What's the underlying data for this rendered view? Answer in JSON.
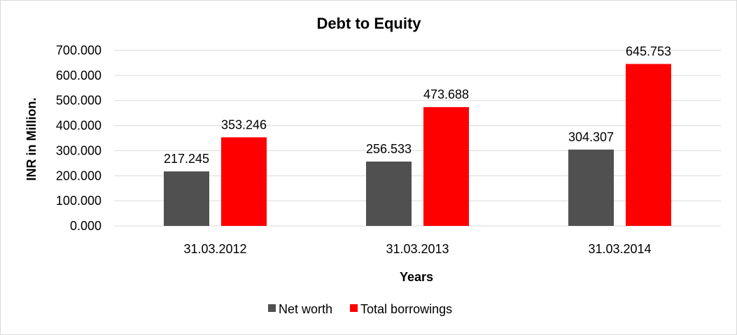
{
  "chart_data": {
    "type": "bar",
    "title": "Debt to Equity",
    "xlabel": "Years",
    "ylabel": "INR in Million.",
    "categories": [
      "31.03.2012",
      "31.03.2013",
      "31.03.2014"
    ],
    "series": [
      {
        "name": "Net worth",
        "color": "#505050",
        "values": [
          217.245,
          256.533,
          304.307
        ],
        "labels": [
          "217.245",
          "256.533",
          "304.307"
        ]
      },
      {
        "name": "Total borrowings",
        "color": "#ff0000",
        "values": [
          353.246,
          473.688,
          645.753
        ],
        "labels": [
          "353.246",
          "473.688",
          "645.753"
        ]
      }
    ],
    "ylim": [
      0,
      700
    ],
    "yticks": [
      "0.000",
      "100.000",
      "200.000",
      "300.000",
      "400.000",
      "500.000",
      "600.000",
      "700.000"
    ],
    "grid": true,
    "gridline_color": "#d9d9d9",
    "legend_position": "bottom"
  }
}
